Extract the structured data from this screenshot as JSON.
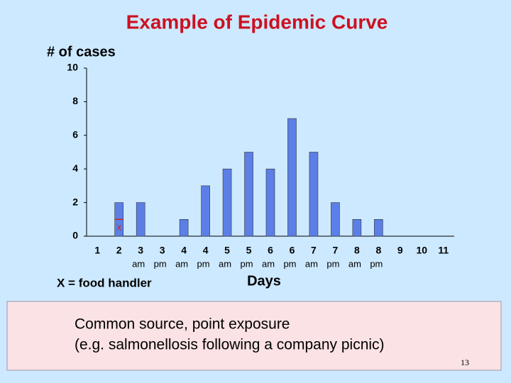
{
  "chart_data": {
    "type": "bar",
    "title": "Example of Epidemic Curve",
    "y_label": "# of cases",
    "x_label": "Days",
    "categories": [
      "1",
      "2",
      "3",
      "3",
      "4",
      "4",
      "5",
      "5",
      "6",
      "6",
      "7",
      "7",
      "8",
      "8",
      "9",
      "10",
      "11"
    ],
    "sublabels": [
      null,
      null,
      "am",
      "pm",
      "am",
      "pm",
      "am",
      "pm",
      "am",
      "pm",
      "am",
      "pm",
      "am",
      "pm",
      null,
      null,
      null
    ],
    "values": [
      0,
      2,
      2,
      0,
      1,
      3,
      4,
      5,
      4,
      7,
      5,
      2,
      1,
      1,
      0,
      0,
      0
    ],
    "color": "#5b7fe6",
    "ylim": [
      0,
      10
    ],
    "yticks": [
      0,
      2,
      4,
      6,
      8,
      10
    ],
    "annotation": {
      "text": "x",
      "category": "2",
      "value": 1,
      "color": "#d02020"
    },
    "note": "X = food handler"
  },
  "caption_lines": [
    "Common source, point exposure",
    "(e.g. salmonellosis following a company picnic)"
  ],
  "page_number": "13"
}
